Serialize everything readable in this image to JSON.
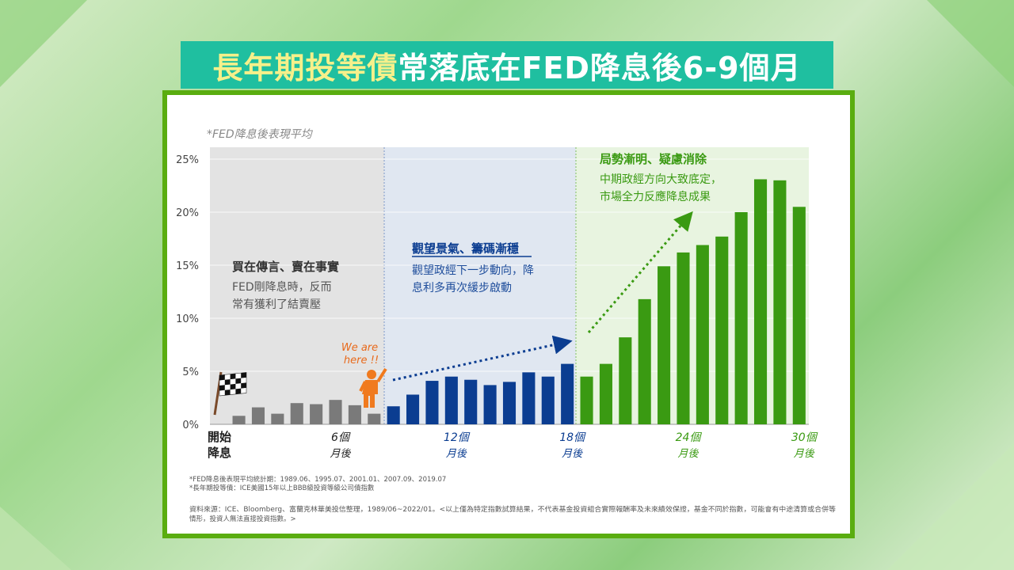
{
  "title": {
    "highlight": "長年期投等債",
    "rest": "常落底在FED降息後6-9個月"
  },
  "chart_data": {
    "type": "bar",
    "subtitle": "*FED降息後表現平均",
    "ylim": [
      0,
      25
    ],
    "yticks": [
      "25%",
      "20%",
      "15%",
      "10%",
      "5%",
      "0%"
    ],
    "ytick_values": [
      25,
      20,
      15,
      10,
      5,
      0
    ],
    "series": [
      {
        "name": "phase1",
        "color": "#7a7a7a",
        "values": [
          0.8,
          1.6,
          1.0,
          2.0,
          1.9,
          2.3,
          1.8,
          1.0
        ]
      },
      {
        "name": "phase2",
        "color": "#0b3d91",
        "values": [
          1.7,
          2.8,
          4.1,
          4.5,
          4.2,
          3.7,
          4.0,
          4.9,
          4.5,
          5.7
        ]
      },
      {
        "name": "phase3",
        "color": "#3a9a12",
        "values": [
          4.5,
          5.7,
          8.2,
          11.8,
          14.9,
          16.2,
          16.9,
          17.7,
          20.0,
          23.1,
          23.0,
          20.5
        ]
      }
    ],
    "xticks": [
      {
        "line1": "開始",
        "line2": "降息",
        "index": 0,
        "bold": true
      },
      {
        "line1": "6個",
        "line2": "月後",
        "index": 6
      },
      {
        "line1": "12個",
        "line2": "月後",
        "index": 12
      },
      {
        "line1": "18個",
        "line2": "月後",
        "index": 18
      },
      {
        "line1": "24個",
        "line2": "月後",
        "index": 24
      },
      {
        "line1": "30個",
        "line2": "月後",
        "index": 30
      }
    ],
    "annotations": {
      "zone1_title": "買在傳言、賣在事實",
      "zone1_line1": "FED剛降息時，反而",
      "zone1_line2": "常有獲利了結賣壓",
      "zone2_title": "觀望景氣、籌碼漸穩",
      "zone2_line1": "觀望政經下一步動向，降",
      "zone2_line2": "息利多再次緩步啟動",
      "zone3_title": "局勢漸明、疑慮消除",
      "zone3_line1": "中期政經方向大致底定，",
      "zone3_line2": "市場全力反應降息成果",
      "we_are_here_1": "We are",
      "we_are_here_2": "here !!"
    }
  },
  "footnotes": {
    "note1": "*FED降息後表現平均統計期：1989.06、1995.07、2001.01、2007.09、2019.07",
    "note2": "*長年期投等債：ICE美國15年以上BBB級投資等級公司債指數",
    "source1": "資料來源：ICE、Bloomberg、富蘭克林華美投信整理，1989/06~2022/01。<以上僅為特定指數試算結果，不代表基金投資組合實際報酬率及未來績效保證，基金不同於指數，可能會有中途清算或合併等",
    "source2": "情形，投資人無法直接投資指數。>"
  }
}
